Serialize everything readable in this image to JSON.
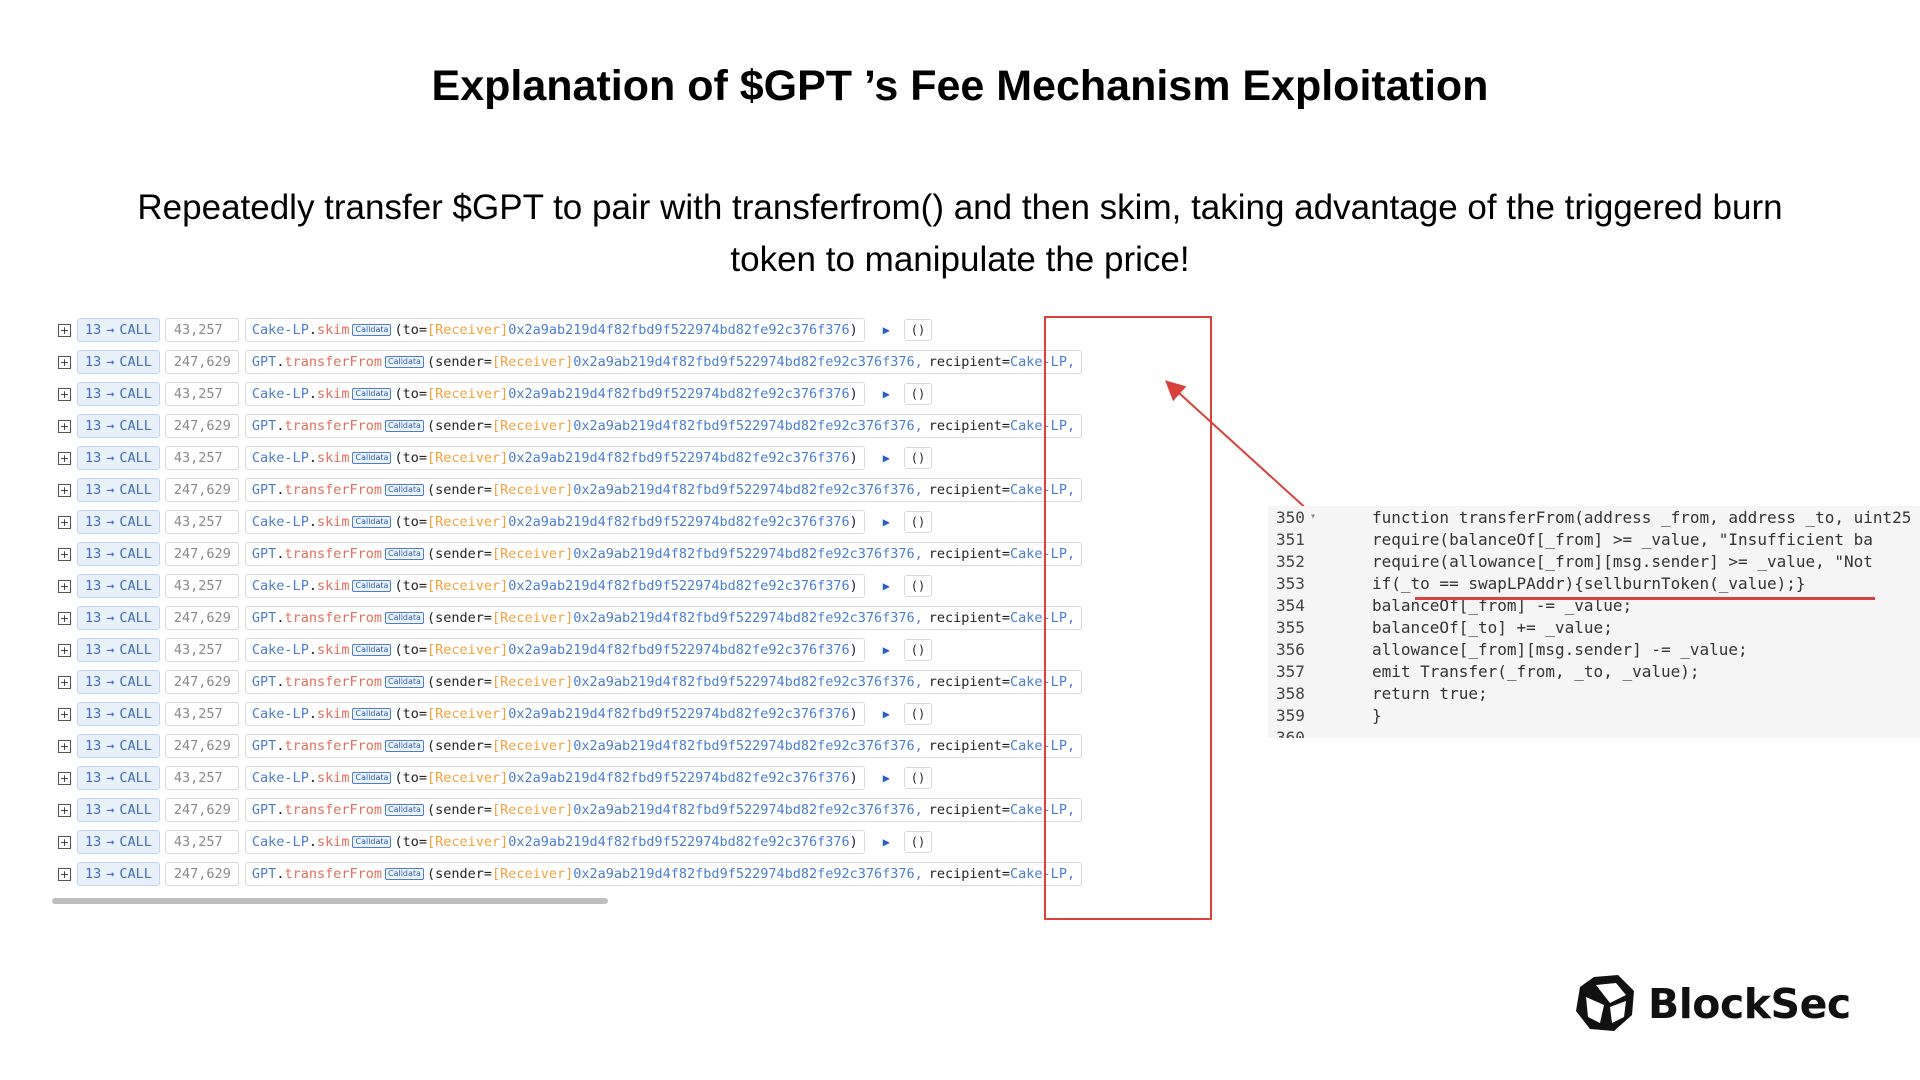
{
  "title": "Explanation of $GPT ’s Fee Mechanism Exploitation",
  "subtitle": "Repeatedly transfer $GPT to pair with transferfrom() and then skim, taking advantage of the triggered burn token to manipulate the price!",
  "trace": {
    "rows": [
      {
        "type": "skim",
        "depth": "13",
        "call": "CALL",
        "gas": "43,257",
        "contract": "Cake-LP",
        "method": "skim",
        "calldata_tag": "Calldata",
        "param_open": "(to=",
        "label": "[Receiver]",
        "address": "0x2a9ab219d4f82fbd9f522974bd82fe92c376f376",
        "param_close": ")",
        "ret": "()"
      },
      {
        "type": "transferFrom",
        "depth": "13",
        "call": "CALL",
        "gas": "247,629",
        "contract": "GPT",
        "method": "transferFrom",
        "calldata_tag": "Calldata",
        "param_open": "(sender=",
        "label": "[Receiver]",
        "address": "0x2a9ab219d4f82fbd9f522974bd82fe92c376f376,",
        "recipient_label": "recipient=",
        "recipient": "Cake-LP,"
      },
      {
        "type": "skim",
        "depth": "13",
        "call": "CALL",
        "gas": "43,257",
        "contract": "Cake-LP",
        "method": "skim",
        "calldata_tag": "Calldata",
        "param_open": "(to=",
        "label": "[Receiver]",
        "address": "0x2a9ab219d4f82fbd9f522974bd82fe92c376f376",
        "param_close": ")",
        "ret": "()"
      },
      {
        "type": "transferFrom",
        "depth": "13",
        "call": "CALL",
        "gas": "247,629",
        "contract": "GPT",
        "method": "transferFrom",
        "calldata_tag": "Calldata",
        "param_open": "(sender=",
        "label": "[Receiver]",
        "address": "0x2a9ab219d4f82fbd9f522974bd82fe92c376f376,",
        "recipient_label": "recipient=",
        "recipient": "Cake-LP,"
      },
      {
        "type": "skim",
        "depth": "13",
        "call": "CALL",
        "gas": "43,257",
        "contract": "Cake-LP",
        "method": "skim",
        "calldata_tag": "Calldata",
        "param_open": "(to=",
        "label": "[Receiver]",
        "address": "0x2a9ab219d4f82fbd9f522974bd82fe92c376f376",
        "param_close": ")",
        "ret": "()"
      },
      {
        "type": "transferFrom",
        "depth": "13",
        "call": "CALL",
        "gas": "247,629",
        "contract": "GPT",
        "method": "transferFrom",
        "calldata_tag": "Calldata",
        "param_open": "(sender=",
        "label": "[Receiver]",
        "address": "0x2a9ab219d4f82fbd9f522974bd82fe92c376f376,",
        "recipient_label": "recipient=",
        "recipient": "Cake-LP,"
      },
      {
        "type": "skim",
        "depth": "13",
        "call": "CALL",
        "gas": "43,257",
        "contract": "Cake-LP",
        "method": "skim",
        "calldata_tag": "Calldata",
        "param_open": "(to=",
        "label": "[Receiver]",
        "address": "0x2a9ab219d4f82fbd9f522974bd82fe92c376f376",
        "param_close": ")",
        "ret": "()"
      },
      {
        "type": "transferFrom",
        "depth": "13",
        "call": "CALL",
        "gas": "247,629",
        "contract": "GPT",
        "method": "transferFrom",
        "calldata_tag": "Calldata",
        "param_open": "(sender=",
        "label": "[Receiver]",
        "address": "0x2a9ab219d4f82fbd9f522974bd82fe92c376f376,",
        "recipient_label": "recipient=",
        "recipient": "Cake-LP,"
      },
      {
        "type": "skim",
        "depth": "13",
        "call": "CALL",
        "gas": "43,257",
        "contract": "Cake-LP",
        "method": "skim",
        "calldata_tag": "Calldata",
        "param_open": "(to=",
        "label": "[Receiver]",
        "address": "0x2a9ab219d4f82fbd9f522974bd82fe92c376f376",
        "param_close": ")",
        "ret": "()"
      },
      {
        "type": "transferFrom",
        "depth": "13",
        "call": "CALL",
        "gas": "247,629",
        "contract": "GPT",
        "method": "transferFrom",
        "calldata_tag": "Calldata",
        "param_open": "(sender=",
        "label": "[Receiver]",
        "address": "0x2a9ab219d4f82fbd9f522974bd82fe92c376f376,",
        "recipient_label": "recipient=",
        "recipient": "Cake-LP,"
      },
      {
        "type": "skim",
        "depth": "13",
        "call": "CALL",
        "gas": "43,257",
        "contract": "Cake-LP",
        "method": "skim",
        "calldata_tag": "Calldata",
        "param_open": "(to=",
        "label": "[Receiver]",
        "address": "0x2a9ab219d4f82fbd9f522974bd82fe92c376f376",
        "param_close": ")",
        "ret": "()"
      },
      {
        "type": "transferFrom",
        "depth": "13",
        "call": "CALL",
        "gas": "247,629",
        "contract": "GPT",
        "method": "transferFrom",
        "calldata_tag": "Calldata",
        "param_open": "(sender=",
        "label": "[Receiver]",
        "address": "0x2a9ab219d4f82fbd9f522974bd82fe92c376f376,",
        "recipient_label": "recipient=",
        "recipient": "Cake-LP,"
      },
      {
        "type": "skim",
        "depth": "13",
        "call": "CALL",
        "gas": "43,257",
        "contract": "Cake-LP",
        "method": "skim",
        "calldata_tag": "Calldata",
        "param_open": "(to=",
        "label": "[Receiver]",
        "address": "0x2a9ab219d4f82fbd9f522974bd82fe92c376f376",
        "param_close": ")",
        "ret": "()"
      },
      {
        "type": "transferFrom",
        "depth": "13",
        "call": "CALL",
        "gas": "247,629",
        "contract": "GPT",
        "method": "transferFrom",
        "calldata_tag": "Calldata",
        "param_open": "(sender=",
        "label": "[Receiver]",
        "address": "0x2a9ab219d4f82fbd9f522974bd82fe92c376f376,",
        "recipient_label": "recipient=",
        "recipient": "Cake-LP,"
      },
      {
        "type": "skim",
        "depth": "13",
        "call": "CALL",
        "gas": "43,257",
        "contract": "Cake-LP",
        "method": "skim",
        "calldata_tag": "Calldata",
        "param_open": "(to=",
        "label": "[Receiver]",
        "address": "0x2a9ab219d4f82fbd9f522974bd82fe92c376f376",
        "param_close": ")",
        "ret": "()"
      },
      {
        "type": "transferFrom",
        "depth": "13",
        "call": "CALL",
        "gas": "247,629",
        "contract": "GPT",
        "method": "transferFrom",
        "calldata_tag": "Calldata",
        "param_open": "(sender=",
        "label": "[Receiver]",
        "address": "0x2a9ab219d4f82fbd9f522974bd82fe92c376f376,",
        "recipient_label": "recipient=",
        "recipient": "Cake-LP,"
      },
      {
        "type": "skim",
        "depth": "13",
        "call": "CALL",
        "gas": "43,257",
        "contract": "Cake-LP",
        "method": "skim",
        "calldata_tag": "Calldata",
        "param_open": "(to=",
        "label": "[Receiver]",
        "address": "0x2a9ab219d4f82fbd9f522974bd82fe92c376f376",
        "param_close": ")",
        "ret": "()"
      },
      {
        "type": "transferFrom",
        "depth": "13",
        "call": "CALL",
        "gas": "247,629",
        "contract": "GPT",
        "method": "transferFrom",
        "calldata_tag": "Calldata",
        "param_open": "(sender=",
        "label": "[Receiver]",
        "address": "0x2a9ab219d4f82fbd9f522974bd82fe92c376f376,",
        "recipient_label": "recipient=",
        "recipient": "Cake-LP,"
      }
    ]
  },
  "code": {
    "lines": [
      {
        "num": "350",
        "fold": true,
        "text": "function transferFrom(address _from, address _to, uint25"
      },
      {
        "num": "351",
        "fold": false,
        "text": "    require(balanceOf[_from] >= _value, \"Insufficient ba"
      },
      {
        "num": "352",
        "fold": false,
        "text": "    require(allowance[_from][msg.sender] >= _value, \"Not"
      },
      {
        "num": "353",
        "fold": false,
        "text": "    if(_to == swapLPAddr){sellburnToken(_value);}"
      },
      {
        "num": "354",
        "fold": false,
        "text": "    balanceOf[_from] -= _value;"
      },
      {
        "num": "355",
        "fold": false,
        "text": "    balanceOf[_to] += _value;"
      },
      {
        "num": "356",
        "fold": false,
        "text": "    allowance[_from][msg.sender] -= _value;"
      },
      {
        "num": "357",
        "fold": false,
        "text": "    emit Transfer(_from, _to, _value);"
      },
      {
        "num": "358",
        "fold": false,
        "text": "    return true;"
      },
      {
        "num": "359",
        "fold": false,
        "text": "}"
      },
      {
        "num": "360",
        "fold": false,
        "text": ""
      }
    ]
  },
  "logo": {
    "text": "BlockSec"
  },
  "colors": {
    "accent_red": "#d8423a",
    "link_blue": "#4a7ed0",
    "method_orange": "#e0705a",
    "label_orange": "#f2a33a"
  }
}
